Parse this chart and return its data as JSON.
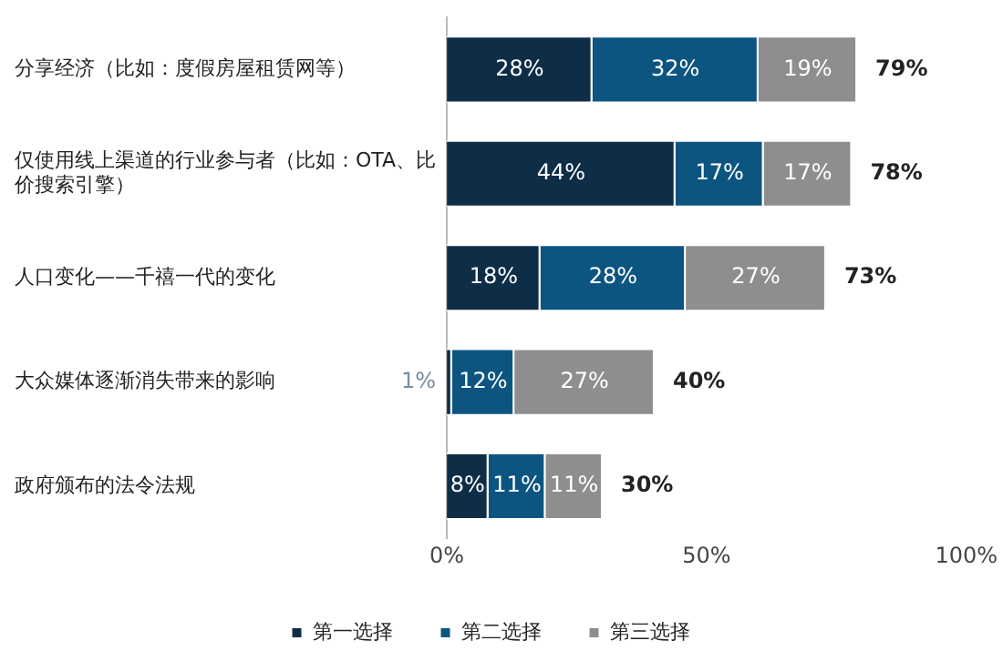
{
  "chart_data": {
    "type": "bar",
    "orientation": "horizontal",
    "stacked": true,
    "categories": [
      "分享经济（比如：度假房屋租赁网等）",
      "仅使用线上渠道的行业参与者（比如：OTA、比价搜索引擎）",
      "人口变化——千禧一代的变化",
      "大众媒体逐渐消失带来的影响",
      "政府颁布的法令法规"
    ],
    "series": [
      {
        "name": "第一选择",
        "color": "#0e2d47",
        "values": [
          28,
          44,
          18,
          1,
          8
        ],
        "value_labels": [
          "28%",
          "44%",
          "18%",
          "1%",
          "8%"
        ]
      },
      {
        "name": "第二选择",
        "color": "#0c5580",
        "values": [
          32,
          17,
          28,
          12,
          11
        ],
        "value_labels": [
          "32%",
          "17%",
          "28%",
          "12%",
          "11%"
        ]
      },
      {
        "name": "第三选择",
        "color": "#8e8e8e",
        "values": [
          19,
          17,
          27,
          27,
          11
        ],
        "value_labels": [
          "19%",
          "17%",
          "27%",
          "27%",
          "11%"
        ]
      }
    ],
    "totals": [
      "79%",
      "78%",
      "73%",
      "40%",
      "30%"
    ],
    "xlim": [
      0,
      100
    ],
    "xticks": [
      {
        "value": 0,
        "label": "0%"
      },
      {
        "value": 50,
        "label": "50%"
      },
      {
        "value": 100,
        "label": "100%"
      }
    ],
    "grid": false,
    "legend": "bottom"
  }
}
